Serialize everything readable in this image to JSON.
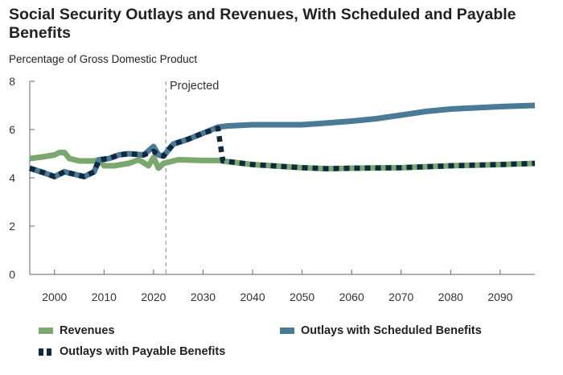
{
  "chart_data": {
    "type": "line",
    "title": "Social Security Outlays and Revenues, With Scheduled and Payable Benefits",
    "ylabel": "Percentage of Gross Domestic Product",
    "xlabel": "",
    "annotation": "Projected",
    "projection_start": 2022.5,
    "xlim": [
      1995,
      2097
    ],
    "ylim": [
      0,
      8
    ],
    "xticks": [
      2000,
      2010,
      2020,
      2030,
      2040,
      2050,
      2060,
      2070,
      2080,
      2090
    ],
    "yticks": [
      0,
      2,
      4,
      6,
      8
    ],
    "grid": false,
    "legend_position": "bottom",
    "series": [
      {
        "name": "Revenues",
        "color": "#7aa86e",
        "style": "solid",
        "x": [
          1995,
          1998,
          2000,
          2001,
          2002,
          2003,
          2005,
          2008,
          2009,
          2010,
          2012,
          2015,
          2017,
          2019,
          2020,
          2021,
          2022,
          2025,
          2030,
          2033,
          2040,
          2050,
          2055,
          2060,
          2070,
          2080,
          2090,
          2097
        ],
        "y": [
          4.8,
          4.88,
          4.95,
          5.05,
          5.05,
          4.8,
          4.7,
          4.7,
          4.75,
          4.5,
          4.5,
          4.6,
          4.75,
          4.5,
          4.85,
          4.4,
          4.6,
          4.75,
          4.72,
          4.72,
          4.55,
          4.42,
          4.38,
          4.4,
          4.42,
          4.5,
          4.55,
          4.6
        ]
      },
      {
        "name": "Outlays with Scheduled Benefits",
        "color": "#4a7a96",
        "style": "solid",
        "x": [
          1995,
          1998,
          2000,
          2002,
          2004,
          2006,
          2008,
          2009,
          2011,
          2013,
          2015,
          2018,
          2020,
          2021,
          2022,
          2024,
          2027,
          2030,
          2033,
          2035,
          2040,
          2045,
          2050,
          2055,
          2060,
          2065,
          2070,
          2075,
          2080,
          2085,
          2090,
          2097
        ],
        "y": [
          4.4,
          4.2,
          4.05,
          4.25,
          4.15,
          4.05,
          4.25,
          4.75,
          4.8,
          4.95,
          5.0,
          4.95,
          5.3,
          4.95,
          4.9,
          5.4,
          5.6,
          5.85,
          6.1,
          6.15,
          6.2,
          6.2,
          6.2,
          6.27,
          6.35,
          6.45,
          6.6,
          6.75,
          6.85,
          6.9,
          6.95,
          7.0
        ]
      },
      {
        "name": "Outlays with Payable Benefits",
        "color": "#0f2a40",
        "style": "dotted",
        "x": [
          1995,
          1998,
          2000,
          2002,
          2004,
          2006,
          2008,
          2009,
          2011,
          2013,
          2015,
          2018,
          2020,
          2021,
          2022,
          2024,
          2027,
          2030,
          2033,
          2034,
          2040,
          2050,
          2055,
          2060,
          2070,
          2080,
          2090,
          2097
        ],
        "y": [
          4.4,
          4.2,
          4.05,
          4.25,
          4.15,
          4.05,
          4.25,
          4.75,
          4.8,
          4.95,
          5.0,
          4.95,
          5.1,
          4.95,
          4.9,
          5.4,
          5.6,
          5.85,
          6.05,
          4.7,
          4.55,
          4.42,
          4.38,
          4.4,
          4.42,
          4.5,
          4.55,
          4.6
        ]
      }
    ]
  }
}
